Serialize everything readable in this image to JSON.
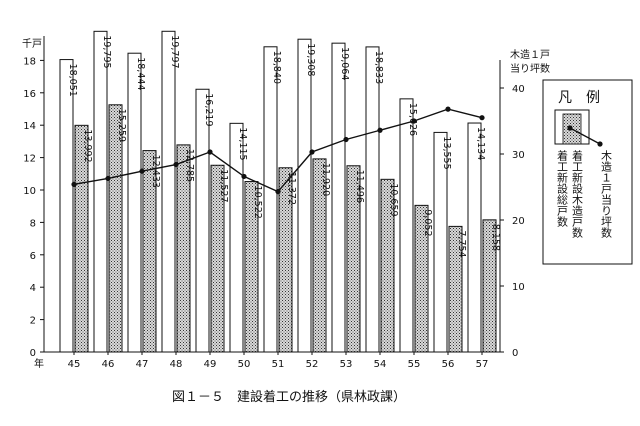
{
  "chart_data": {
    "type": "bar",
    "title": "",
    "caption": "図１－５　建設着工の推移（県林政課）",
    "categories": [
      "45",
      "46",
      "47",
      "48",
      "49",
      "50",
      "51",
      "52",
      "53",
      "54",
      "55",
      "56",
      "57"
    ],
    "x_axis_label": "年",
    "y_left_unit": "千戸",
    "y_right_unit_line1": "木造１戸",
    "y_right_unit_line2": "当り坪数",
    "y_left_ticks": [
      "0",
      "2",
      "4",
      "6",
      "8",
      "10",
      "12",
      "14",
      "16",
      "18"
    ],
    "y_right_ticks": [
      "0",
      "10",
      "20",
      "30",
      "40"
    ],
    "ylim_left": [
      0,
      20
    ],
    "ylim_right": [
      0,
      44
    ],
    "series": [
      {
        "name": "着工新設総戸数",
        "kind": "bar",
        "values": [
          18051,
          19795,
          18444,
          19797,
          16219,
          14115,
          18840,
          19308,
          19064,
          18833,
          15626,
          13555,
          14134
        ],
        "labels": [
          "18,051",
          "19,795",
          "18,444",
          "19,797",
          "16,219",
          "14,115",
          "18,840",
          "19,308",
          "19,064",
          "18,833",
          "15,626",
          "13,555",
          "14,134"
        ]
      },
      {
        "name": "着工新設木造戸数",
        "kind": "bar",
        "values": [
          13992,
          15259,
          12433,
          12785,
          11527,
          10522,
          11372,
          11920,
          11496,
          10659,
          9052,
          7754,
          8158
        ],
        "labels": [
          "13,992",
          "15,259",
          "12,433",
          "12,785",
          "11,527",
          "10,522",
          "11,372",
          "11,920",
          "11,496",
          "10,659",
          "9,052",
          "7,754",
          "8,158"
        ]
      },
      {
        "name": "木造１戸当り坪数",
        "kind": "line",
        "axis": "right",
        "values": [
          25.4,
          26.3,
          27.4,
          28.4,
          30.3,
          26.6,
          24.3,
          30.3,
          32.2,
          33.6,
          35.0,
          36.8,
          35.5
        ]
      }
    ],
    "legend": {
      "title": "凡　例",
      "entries": [
        "着工新設総戸数",
        "着工新設木造戸数",
        "木造１戸当り坪数"
      ],
      "position": "right"
    }
  }
}
